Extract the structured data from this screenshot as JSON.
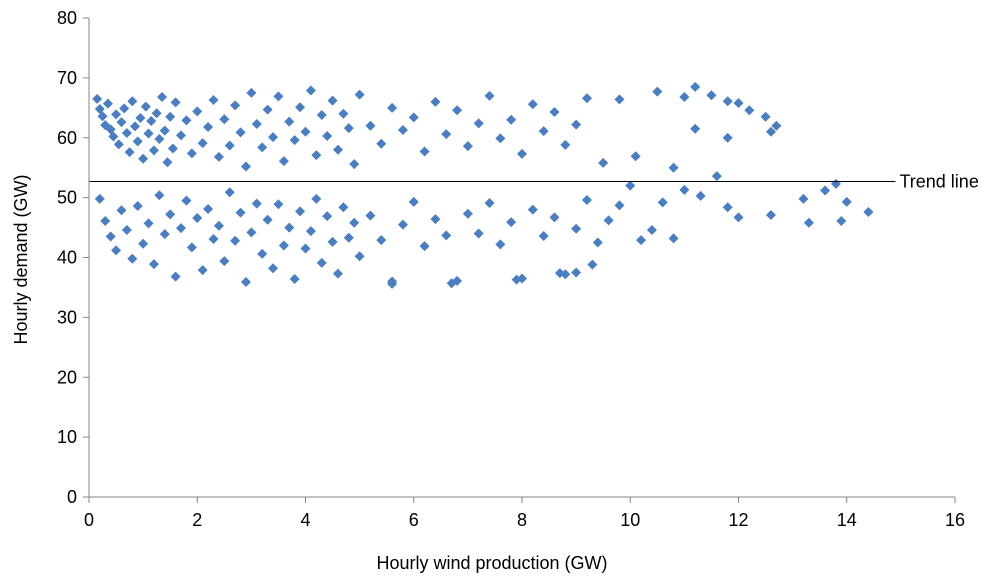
{
  "chart_data": {
    "type": "scatter",
    "title": "",
    "xlabel": "Hourly wind production (GW)",
    "ylabel": "Hourly demand (GW)",
    "xlim": [
      0,
      16
    ],
    "ylim": [
      0,
      80
    ],
    "xticks": [
      "0",
      "2",
      "4",
      "6",
      "8",
      "10",
      "12",
      "14",
      "16"
    ],
    "yticks": [
      "0",
      "10",
      "20",
      "30",
      "40",
      "50",
      "60",
      "70",
      "80"
    ],
    "grid": false,
    "legend": "none",
    "marker": "diamond",
    "color": "#4A7EC2",
    "annotations": [
      {
        "text": "Trend line",
        "kind": "horizontal-line",
        "y": 52.7,
        "x_start": 0,
        "x_end": 14.9
      }
    ],
    "series": [
      {
        "points": [
          [
            0.15,
            66.5
          ],
          [
            0.2,
            64.8
          ],
          [
            0.25,
            63.6
          ],
          [
            0.3,
            62.1
          ],
          [
            0.35,
            65.7
          ],
          [
            0.4,
            61.4
          ],
          [
            0.45,
            60.2
          ],
          [
            0.5,
            63.9
          ],
          [
            0.55,
            58.9
          ],
          [
            0.6,
            62.6
          ],
          [
            0.65,
            64.9
          ],
          [
            0.7,
            60.8
          ],
          [
            0.75,
            57.6
          ],
          [
            0.8,
            66.1
          ],
          [
            0.85,
            61.9
          ],
          [
            0.9,
            59.4
          ],
          [
            0.95,
            63.3
          ],
          [
            1.0,
            56.5
          ],
          [
            1.05,
            65.2
          ],
          [
            1.1,
            60.7
          ],
          [
            1.15,
            62.8
          ],
          [
            1.2,
            57.9
          ],
          [
            1.25,
            64.1
          ],
          [
            1.3,
            59.8
          ],
          [
            1.35,
            66.8
          ],
          [
            1.4,
            61.2
          ],
          [
            1.45,
            55.9
          ],
          [
            1.5,
            63.5
          ],
          [
            1.55,
            58.2
          ],
          [
            1.6,
            65.9
          ],
          [
            1.7,
            60.4
          ],
          [
            1.8,
            62.9
          ],
          [
            1.9,
            57.4
          ],
          [
            2.0,
            64.4
          ],
          [
            2.1,
            59.1
          ],
          [
            2.2,
            61.8
          ],
          [
            2.3,
            66.3
          ],
          [
            2.4,
            56.8
          ],
          [
            2.5,
            63.1
          ],
          [
            2.6,
            58.7
          ],
          [
            2.7,
            65.4
          ],
          [
            2.8,
            60.9
          ],
          [
            2.9,
            55.2
          ],
          [
            3.0,
            67.5
          ],
          [
            3.1,
            62.3
          ],
          [
            3.2,
            58.4
          ],
          [
            3.3,
            64.7
          ],
          [
            3.4,
            60.1
          ],
          [
            3.5,
            66.9
          ],
          [
            3.6,
            56.1
          ],
          [
            3.7,
            62.7
          ],
          [
            3.8,
            59.6
          ],
          [
            3.9,
            65.1
          ],
          [
            4.0,
            61.0
          ],
          [
            4.1,
            67.9
          ],
          [
            4.2,
            57.1
          ],
          [
            4.3,
            63.8
          ],
          [
            4.4,
            60.3
          ],
          [
            4.5,
            66.2
          ],
          [
            4.6,
            58.0
          ],
          [
            4.7,
            64.0
          ],
          [
            4.8,
            61.6
          ],
          [
            4.9,
            55.6
          ],
          [
            5.0,
            67.2
          ],
          [
            5.2,
            62.0
          ],
          [
            5.4,
            59.0
          ],
          [
            5.6,
            65.0
          ],
          [
            5.8,
            61.3
          ],
          [
            6.0,
            63.4
          ],
          [
            6.2,
            57.7
          ],
          [
            6.4,
            66.0
          ],
          [
            6.6,
            60.6
          ],
          [
            6.8,
            64.6
          ],
          [
            7.0,
            58.6
          ],
          [
            7.2,
            62.4
          ],
          [
            7.4,
            67.0
          ],
          [
            7.6,
            59.9
          ],
          [
            7.8,
            63.0
          ],
          [
            8.0,
            57.3
          ],
          [
            8.2,
            65.6
          ],
          [
            8.4,
            61.1
          ],
          [
            8.6,
            64.3
          ],
          [
            8.8,
            58.8
          ],
          [
            9.0,
            62.2
          ],
          [
            9.2,
            66.6
          ],
          [
            9.5,
            55.8
          ],
          [
            9.8,
            66.4
          ],
          [
            10.1,
            56.9
          ],
          [
            10.5,
            67.7
          ],
          [
            11.0,
            66.8
          ],
          [
            11.2,
            68.5
          ],
          [
            11.5,
            67.1
          ],
          [
            11.8,
            66.1
          ],
          [
            12.0,
            65.8
          ],
          [
            12.2,
            64.6
          ],
          [
            12.5,
            63.5
          ],
          [
            12.7,
            62.0
          ],
          [
            12.6,
            61.0
          ],
          [
            11.8,
            60.0
          ],
          [
            11.2,
            61.5
          ],
          [
            10.8,
            55.0
          ],
          [
            11.6,
            53.6
          ],
          [
            0.2,
            49.8
          ],
          [
            0.3,
            46.1
          ],
          [
            0.4,
            43.5
          ],
          [
            0.5,
            41.2
          ],
          [
            0.6,
            47.9
          ],
          [
            0.7,
            44.6
          ],
          [
            0.8,
            39.8
          ],
          [
            0.9,
            48.6
          ],
          [
            1.0,
            42.3
          ],
          [
            1.1,
            45.7
          ],
          [
            1.2,
            38.9
          ],
          [
            1.3,
            50.4
          ],
          [
            1.4,
            43.9
          ],
          [
            1.5,
            47.2
          ],
          [
            1.6,
            36.8
          ],
          [
            1.7,
            44.9
          ],
          [
            1.8,
            49.5
          ],
          [
            1.9,
            41.7
          ],
          [
            2.0,
            46.6
          ],
          [
            2.1,
            37.9
          ],
          [
            2.2,
            48.1
          ],
          [
            2.3,
            43.1
          ],
          [
            2.4,
            45.3
          ],
          [
            2.5,
            39.4
          ],
          [
            2.6,
            50.9
          ],
          [
            2.7,
            42.8
          ],
          [
            2.8,
            47.5
          ],
          [
            2.9,
            35.9
          ],
          [
            3.0,
            44.2
          ],
          [
            3.1,
            49.0
          ],
          [
            3.2,
            40.6
          ],
          [
            3.3,
            46.3
          ],
          [
            3.4,
            38.2
          ],
          [
            3.5,
            48.9
          ],
          [
            3.6,
            42.0
          ],
          [
            3.7,
            45.0
          ],
          [
            3.8,
            36.4
          ],
          [
            3.9,
            47.7
          ],
          [
            4.0,
            41.5
          ],
          [
            4.1,
            44.4
          ],
          [
            4.2,
            49.8
          ],
          [
            4.3,
            39.1
          ],
          [
            4.4,
            46.9
          ],
          [
            4.5,
            42.6
          ],
          [
            4.6,
            37.3
          ],
          [
            4.7,
            48.4
          ],
          [
            4.8,
            43.3
          ],
          [
            4.9,
            45.8
          ],
          [
            5.0,
            40.2
          ],
          [
            5.2,
            47.0
          ],
          [
            5.4,
            42.9
          ],
          [
            5.6,
            36.0
          ],
          [
            5.8,
            45.5
          ],
          [
            6.0,
            49.3
          ],
          [
            6.2,
            41.9
          ],
          [
            6.4,
            46.4
          ],
          [
            6.6,
            43.7
          ],
          [
            6.8,
            36.1
          ],
          [
            7.0,
            47.3
          ],
          [
            7.2,
            44.0
          ],
          [
            7.4,
            49.1
          ],
          [
            7.6,
            42.2
          ],
          [
            7.8,
            45.9
          ],
          [
            8.0,
            36.5
          ],
          [
            8.2,
            48.0
          ],
          [
            8.4,
            43.6
          ],
          [
            8.6,
            46.7
          ],
          [
            8.8,
            37.2
          ],
          [
            9.0,
            44.8
          ],
          [
            9.2,
            49.6
          ],
          [
            9.4,
            42.5
          ],
          [
            9.6,
            46.2
          ],
          [
            9.8,
            48.7
          ],
          [
            10.2,
            42.9
          ],
          [
            10.4,
            44.6
          ],
          [
            10.6,
            49.2
          ],
          [
            10.8,
            43.2
          ],
          [
            11.0,
            51.3
          ],
          [
            11.3,
            50.3
          ],
          [
            11.8,
            48.4
          ],
          [
            12.0,
            46.7
          ],
          [
            12.6,
            47.1
          ],
          [
            13.2,
            49.8
          ],
          [
            13.3,
            45.8
          ],
          [
            13.6,
            51.2
          ],
          [
            13.8,
            52.3
          ],
          [
            13.9,
            46.1
          ],
          [
            14.0,
            49.3
          ],
          [
            14.4,
            47.6
          ],
          [
            9.0,
            37.5
          ],
          [
            9.3,
            38.8
          ],
          [
            7.9,
            36.3
          ],
          [
            6.7,
            35.7
          ],
          [
            5.6,
            35.6
          ],
          [
            8.7,
            37.4
          ],
          [
            10.0,
            52.0
          ]
        ]
      }
    ]
  }
}
